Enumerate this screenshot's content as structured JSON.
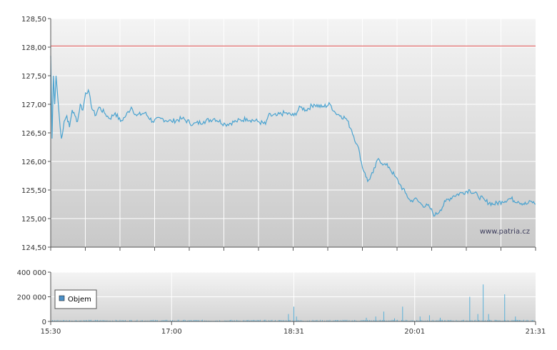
{
  "watermark": "www.patria.cz",
  "chart_data": [
    {
      "type": "line",
      "name": "price",
      "ylim": [
        124.5,
        128.5
      ],
      "yticks": [
        "128,50",
        "128,00",
        "127,50",
        "127,00",
        "126,50",
        "126,00",
        "125,50",
        "125,00",
        "124,50"
      ],
      "ytick_values": [
        128.5,
        128.0,
        127.5,
        127.0,
        126.5,
        126.0,
        125.5,
        125.0,
        124.5
      ],
      "reference_line": 128.02,
      "grid": true,
      "colors": {
        "line": "#4aa3d0",
        "reference": "#e05050",
        "grid": "#ffffff"
      },
      "x_start": "15:30",
      "x_end": "21:31",
      "series_points": [
        [
          "15:30",
          127.85
        ],
        [
          "15:31",
          126.4
        ],
        [
          "15:32",
          127.5
        ],
        [
          "15:33",
          127.0
        ],
        [
          "15:34",
          127.5
        ],
        [
          "15:36",
          126.9
        ],
        [
          "15:37",
          126.6
        ],
        [
          "15:38",
          126.4
        ],
        [
          "15:40",
          126.7
        ],
        [
          "15:42",
          126.8
        ],
        [
          "15:44",
          126.6
        ],
        [
          "15:46",
          126.9
        ],
        [
          "15:48",
          126.8
        ],
        [
          "15:50",
          126.7
        ],
        [
          "15:52",
          127.0
        ],
        [
          "15:54",
          126.9
        ],
        [
          "15:56",
          127.2
        ],
        [
          "15:58",
          127.25
        ],
        [
          "16:00",
          127.0
        ],
        [
          "16:03",
          126.8
        ],
        [
          "16:06",
          126.95
        ],
        [
          "16:10",
          126.85
        ],
        [
          "16:14",
          126.75
        ],
        [
          "16:18",
          126.85
        ],
        [
          "16:22",
          126.7
        ],
        [
          "16:26",
          126.8
        ],
        [
          "16:30",
          126.95
        ],
        [
          "16:34",
          126.8
        ],
        [
          "16:40",
          126.85
        ],
        [
          "16:46",
          126.7
        ],
        [
          "16:52",
          126.75
        ],
        [
          "17:00",
          126.7
        ],
        [
          "17:08",
          126.75
        ],
        [
          "17:16",
          126.65
        ],
        [
          "17:24",
          126.7
        ],
        [
          "17:32",
          126.75
        ],
        [
          "17:40",
          126.65
        ],
        [
          "17:48",
          126.7
        ],
        [
          "17:56",
          126.75
        ],
        [
          "18:04",
          126.7
        ],
        [
          "18:10",
          126.65
        ],
        [
          "18:12",
          126.8
        ],
        [
          "18:18",
          126.8
        ],
        [
          "18:24",
          126.85
        ],
        [
          "18:31",
          126.8
        ],
        [
          "18:36",
          126.95
        ],
        [
          "18:40",
          126.9
        ],
        [
          "18:46",
          127.0
        ],
        [
          "18:52",
          126.95
        ],
        [
          "18:58",
          127.0
        ],
        [
          "19:02",
          126.85
        ],
        [
          "19:06",
          126.8
        ],
        [
          "19:10",
          126.75
        ],
        [
          "19:14",
          126.55
        ],
        [
          "19:18",
          126.3
        ],
        [
          "19:20",
          126.15
        ],
        [
          "19:22",
          125.9
        ],
        [
          "19:24",
          125.8
        ],
        [
          "19:26",
          125.65
        ],
        [
          "19:30",
          125.8
        ],
        [
          "19:34",
          126.05
        ],
        [
          "19:38",
          125.95
        ],
        [
          "19:42",
          125.9
        ],
        [
          "19:46",
          125.75
        ],
        [
          "19:50",
          125.6
        ],
        [
          "19:54",
          125.45
        ],
        [
          "19:58",
          125.3
        ],
        [
          "20:01",
          125.35
        ],
        [
          "20:06",
          125.25
        ],
        [
          "20:12",
          125.2
        ],
        [
          "20:16",
          125.05
        ],
        [
          "20:20",
          125.15
        ],
        [
          "20:24",
          125.3
        ],
        [
          "20:30",
          125.4
        ],
        [
          "20:36",
          125.45
        ],
        [
          "20:42",
          125.5
        ],
        [
          "20:48",
          125.4
        ],
        [
          "20:54",
          125.3
        ],
        [
          "21:00",
          125.25
        ],
        [
          "21:06",
          125.3
        ],
        [
          "21:12",
          125.35
        ],
        [
          "21:18",
          125.3
        ],
        [
          "21:24",
          125.25
        ],
        [
          "21:28",
          125.3
        ],
        [
          "21:31",
          125.25
        ]
      ]
    },
    {
      "type": "bar",
      "name": "volume",
      "legend": "Objem",
      "ylim": [
        0,
        400000
      ],
      "yticks": [
        "400 000",
        "200 000",
        "0"
      ],
      "ytick_values": [
        400000,
        200000,
        0
      ],
      "xticks": [
        "15:30",
        "17:00",
        "18:31",
        "20:01",
        "21:31"
      ],
      "colors": {
        "bar": "#5ab0d8",
        "legend_swatch": "#4a90c8"
      },
      "spikes": [
        [
          "18:27",
          60000
        ],
        [
          "18:31",
          120000
        ],
        [
          "18:33",
          40000
        ],
        [
          "19:25",
          30000
        ],
        [
          "19:32",
          40000
        ],
        [
          "19:38",
          80000
        ],
        [
          "19:46",
          25000
        ],
        [
          "19:52",
          120000
        ],
        [
          "20:05",
          40000
        ],
        [
          "20:12",
          50000
        ],
        [
          "20:20",
          30000
        ],
        [
          "20:42",
          200000
        ],
        [
          "20:48",
          60000
        ],
        [
          "20:52",
          300000
        ],
        [
          "20:56",
          60000
        ],
        [
          "21:08",
          220000
        ],
        [
          "21:16",
          40000
        ]
      ],
      "base_volume": 8000
    }
  ]
}
